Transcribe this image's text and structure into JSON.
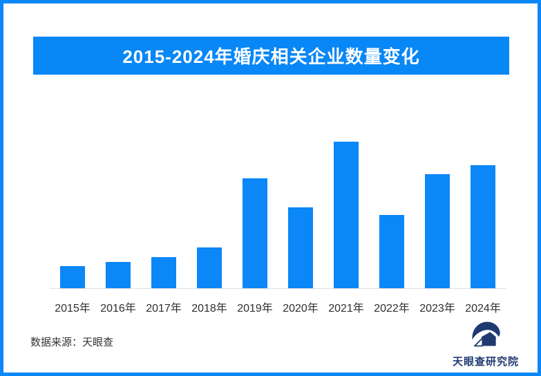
{
  "title_banner": {
    "text": "2015-2024年婚庆相关企业数量变化",
    "bg_color": "#0887F6",
    "text_color": "#ffffff"
  },
  "chart_data": {
    "type": "bar",
    "title": "2015-2024年婚庆相关企业数量变化",
    "categories": [
      "2015年",
      "2016年",
      "2017年",
      "2018年",
      "2019年",
      "2020年",
      "2021年",
      "2022年",
      "2023年",
      "2024年"
    ],
    "values": [
      15,
      18,
      21,
      28,
      75,
      55,
      100,
      50,
      78,
      84
    ],
    "value_note": "relative index estimated from bar heights; no y-axis or data labels shown, normalized to 2021 peak = 100",
    "xlabel": "",
    "ylabel": "",
    "ylim": [
      0,
      100
    ],
    "bar_color": "#0B87F7",
    "grid": false,
    "legend": false,
    "axis_line_color": "#e0e0e0"
  },
  "footer": {
    "source_text": "数据来源：天眼查"
  },
  "logo": {
    "text": "天眼查研究院",
    "color": "#1E3A70",
    "icon": "tianyancha-eye-logo"
  }
}
